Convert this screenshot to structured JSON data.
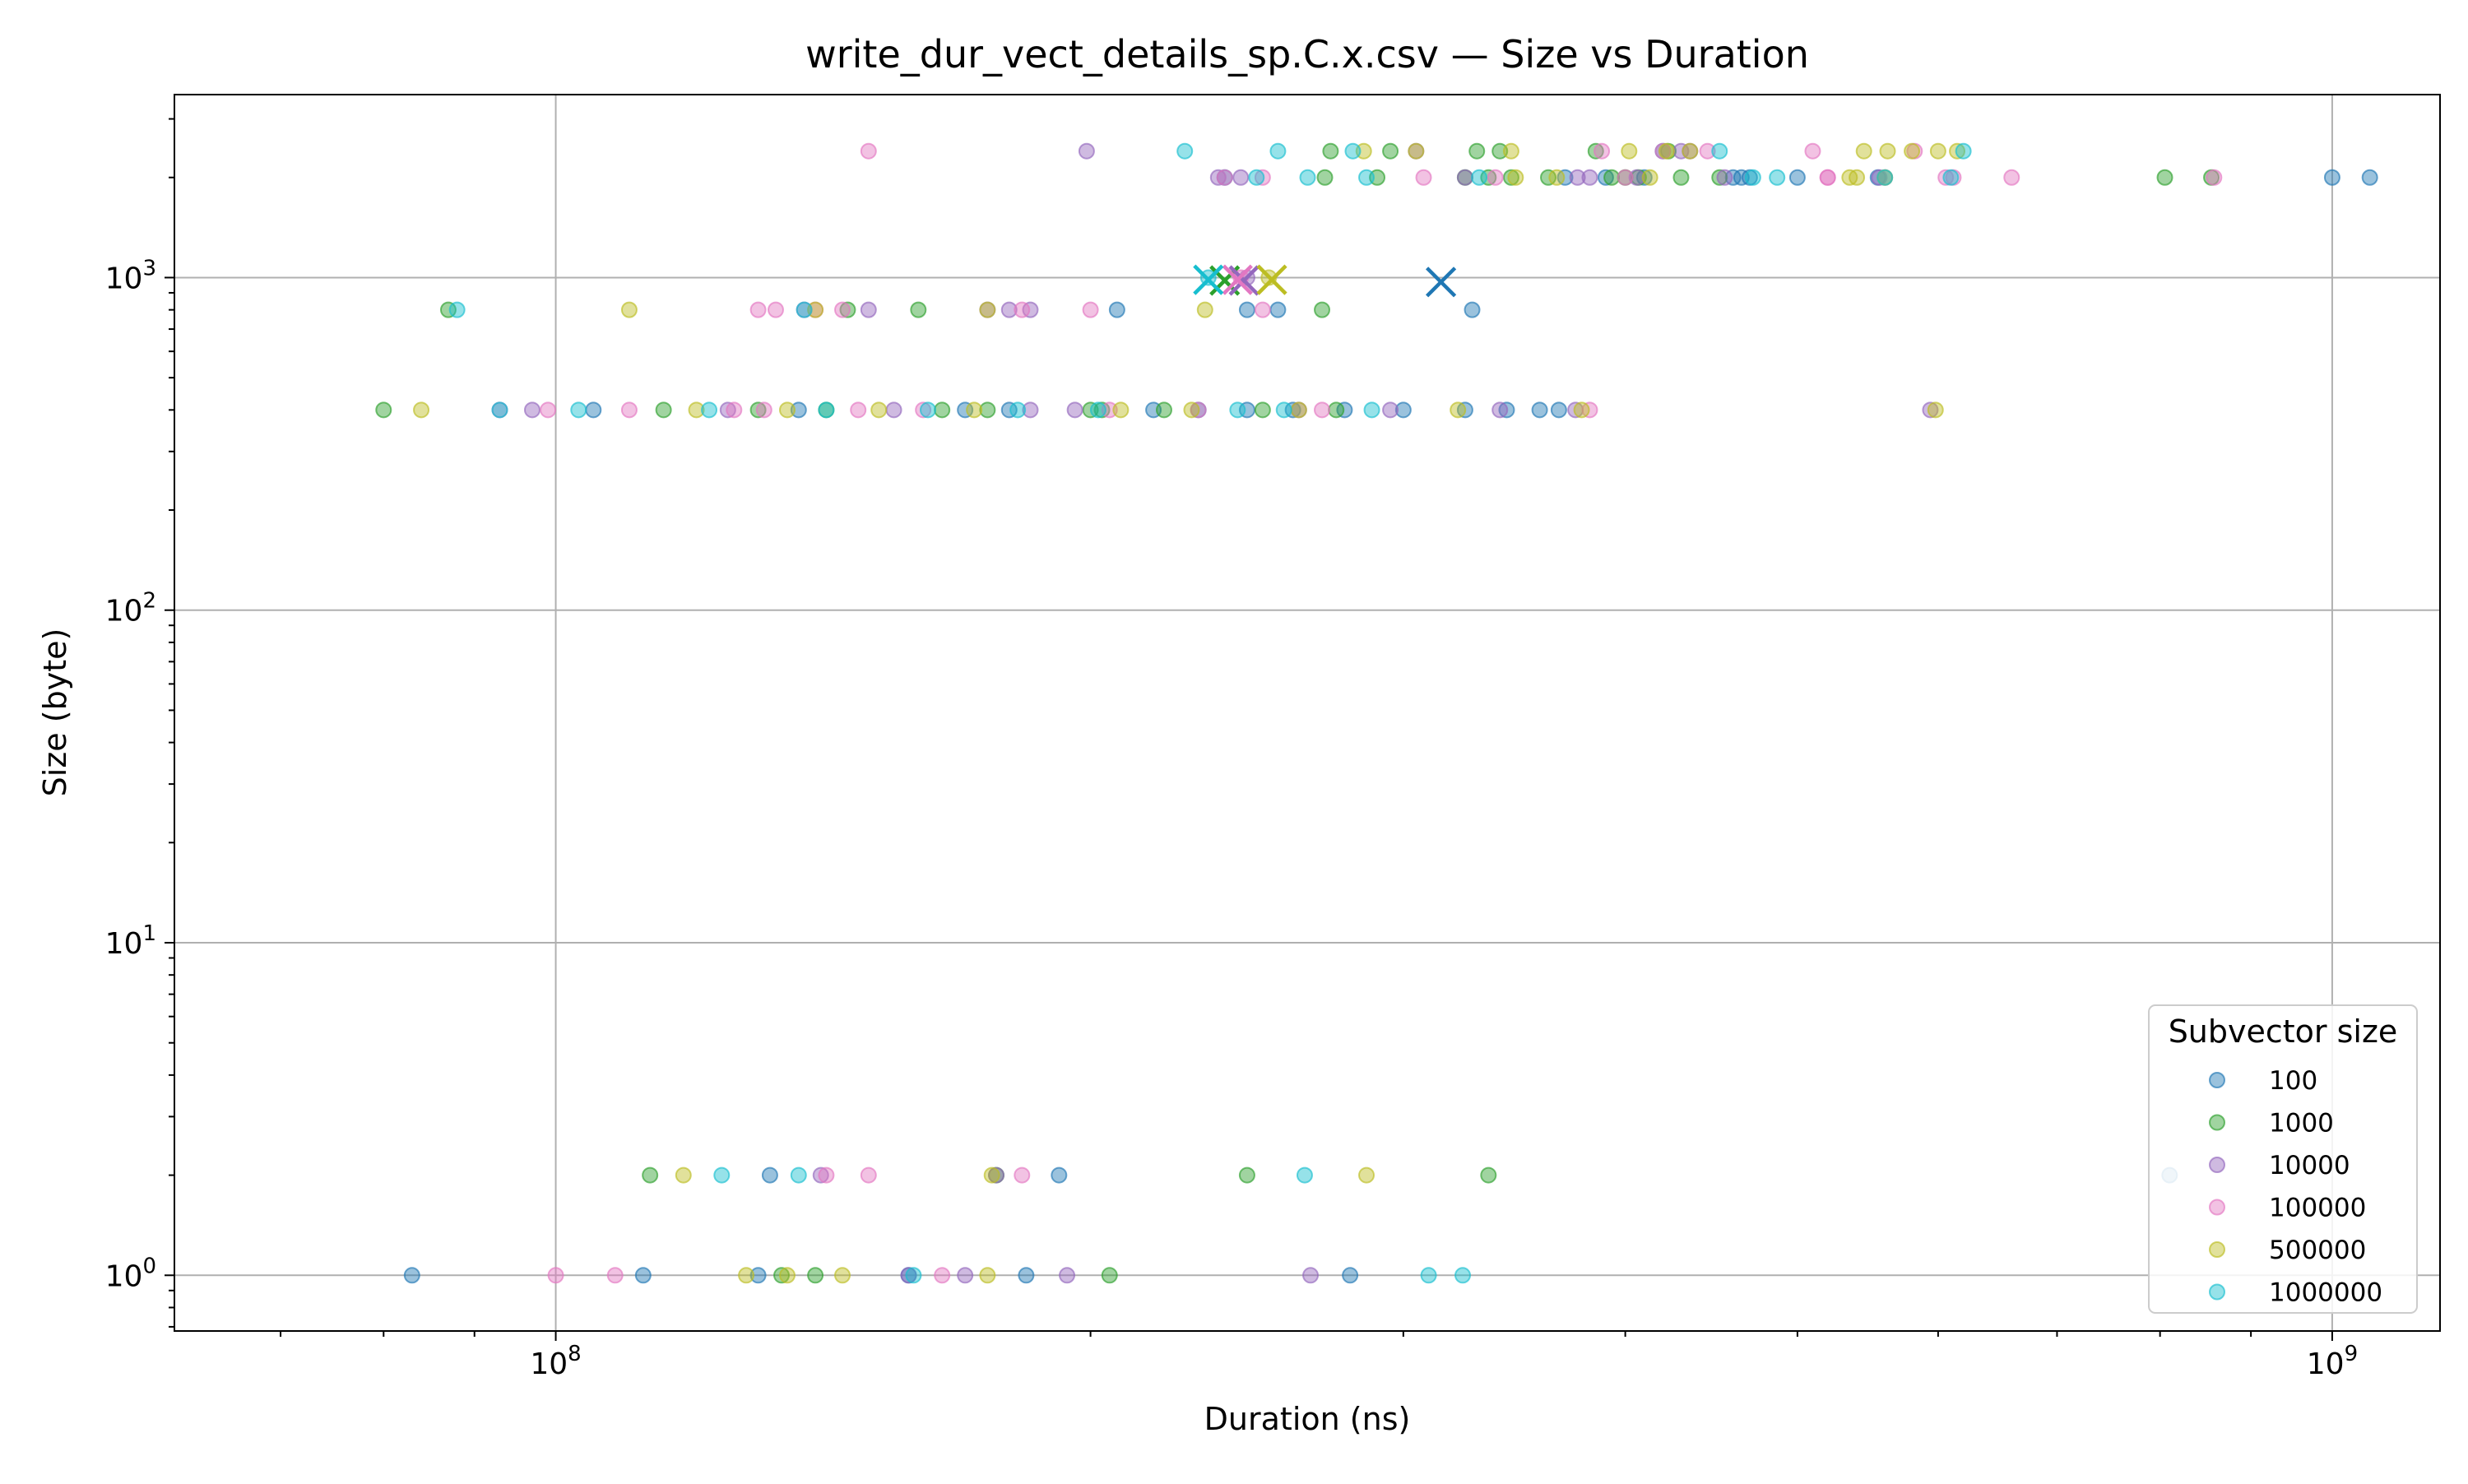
{
  "chart_data": {
    "type": "scatter",
    "title": "write_dur_vect_details_sp.C.x.csv — Size vs Duration",
    "xlabel": "Duration (ns)",
    "ylabel": "Size (byte)",
    "xscale": "log",
    "yscale": "log",
    "xlim": [
      61000000,
      1150000000
    ],
    "ylim": [
      0.68,
      3550
    ],
    "grid": true,
    "x_ticks": [
      {
        "value": 100000000,
        "label": "10^8"
      },
      {
        "value": 1000000000,
        "label": "10^9"
      }
    ],
    "y_ticks": [
      {
        "value": 1,
        "label": "10^0"
      },
      {
        "value": 10,
        "label": "10^1"
      },
      {
        "value": 100,
        "label": "10^2"
      },
      {
        "value": 1000,
        "label": "10^3"
      }
    ],
    "legend": {
      "title": "Subvector size",
      "position": "lower right"
    },
    "series": [
      {
        "name": "100",
        "color": "#1f77b4",
        "points": [
          [
            370000000.0,
            2000
          ],
          [
            410000000.0,
            2000
          ],
          [
            460000000.0,
            2000
          ],
          [
            465000000.0,
            2000
          ],
          [
            555000000.0,
            2000
          ],
          [
            1000000000.0,
            2000
          ],
          [
            1050000000.0,
            2000
          ],
          [
            420000000.0,
            2400
          ],
          [
            390000000.0,
            2000
          ],
          [
            470000000.0,
            2000
          ],
          [
            500000000.0,
            2000
          ],
          [
            238000000.0,
            2000
          ],
          [
            328000000.0,
            800
          ],
          [
            245000000.0,
            800
          ],
          [
            255000000.0,
            800
          ],
          [
            207000000.0,
            800
          ],
          [
            325000000.0,
            400
          ],
          [
            343000000.0,
            400
          ],
          [
            358000000.0,
            400
          ],
          [
            367000000.0,
            400
          ],
          [
            245000000.0,
            400
          ],
          [
            300000000.0,
            400
          ],
          [
            278000000.0,
            400
          ],
          [
            105000000.0,
            400
          ],
          [
            137000000.0,
            400
          ],
          [
            170000000.0,
            400
          ],
          [
            180000000.0,
            400
          ],
          [
            230000000.0,
            400
          ],
          [
            217000000.0,
            400
          ],
          [
            260000000.0,
            400
          ],
          [
            83000000.0,
            1
          ],
          [
            112000000.0,
            1
          ],
          [
            130000000.0,
            1
          ],
          [
            158000000.0,
            1
          ],
          [
            184000000.0,
            1
          ],
          [
            280000000.0,
            1
          ],
          [
            192000000.0,
            2
          ],
          [
            132000000.0,
            2
          ],
          [
            810000000.0,
            2
          ]
        ]
      },
      {
        "name": "1000",
        "color": "#2ca02c",
        "points": [
          [
            330000000.0,
            2400
          ],
          [
            340000000.0,
            2400
          ],
          [
            423000000.0,
            2400
          ],
          [
            325000000.0,
            2000
          ],
          [
            335000000.0,
            2000
          ],
          [
            393000000.0,
            2000
          ],
          [
            400000000.0,
            2000
          ],
          [
            407000000.0,
            2000
          ],
          [
            452000000.0,
            2000
          ],
          [
            290000000.0,
            2000
          ],
          [
            271000000.0,
            2000
          ],
          [
            805000000.0,
            2000
          ],
          [
            855000000.0,
            2000
          ],
          [
            273000000.0,
            2400
          ],
          [
            295000000.0,
            2400
          ],
          [
            345000000.0,
            2000
          ],
          [
            362000000.0,
            2000
          ],
          [
            430000000.0,
            2000
          ],
          [
            385000000.0,
            2400
          ],
          [
            87000000.0,
            800
          ],
          [
            146000000.0,
            800
          ],
          [
            160000000.0,
            800
          ],
          [
            270000000.0,
            800
          ],
          [
            80000000.0,
            400
          ],
          [
            115000000.0,
            400
          ],
          [
            130000000.0,
            400
          ],
          [
            142000000.0,
            400
          ],
          [
            165000000.0,
            400
          ],
          [
            200000000.0,
            400
          ],
          [
            250000000.0,
            400
          ],
          [
            275000000.0,
            400
          ],
          [
            220000000.0,
            400
          ],
          [
            203000000.0,
            400
          ],
          [
            175000000.0,
            400
          ],
          [
            140000000.0,
            1
          ],
          [
            134000000.0,
            1
          ],
          [
            205000000.0,
            1
          ],
          [
            113000000.0,
            2
          ],
          [
            177000000.0,
            2
          ],
          [
            245000000.0,
            2
          ],
          [
            335000000.0,
            2
          ]
        ]
      },
      {
        "name": "10000",
        "color": "#9467bd",
        "points": [
          [
            199000000.0,
            2400
          ],
          [
            305000000.0,
            2400
          ],
          [
            430000000.0,
            2400
          ],
          [
            435000000.0,
            2400
          ],
          [
            236000000.0,
            2000
          ],
          [
            243000000.0,
            2000
          ],
          [
            325000000.0,
            2000
          ],
          [
            376000000.0,
            2000
          ],
          [
            382000000.0,
            2000
          ],
          [
            406000000.0,
            2000
          ],
          [
            455000000.0,
            2000
          ],
          [
            556000000.0,
            2000
          ],
          [
            138000000.0,
            800
          ],
          [
            175000000.0,
            800
          ],
          [
            180000000.0,
            800
          ],
          [
            185000000.0,
            800
          ],
          [
            150000000.0,
            800
          ],
          [
            93000000.0,
            400
          ],
          [
            97000000.0,
            400
          ],
          [
            125000000.0,
            400
          ],
          [
            155000000.0,
            400
          ],
          [
            185000000.0,
            400
          ],
          [
            196000000.0,
            400
          ],
          [
            262000000.0,
            400
          ],
          [
            295000000.0,
            400
          ],
          [
            340000000.0,
            400
          ],
          [
            375000000.0,
            400
          ],
          [
            594000000.0,
            400
          ],
          [
            141000000.0,
            2
          ],
          [
            177000000.0,
            2
          ],
          [
            158000000.0,
            1
          ],
          [
            170000000.0,
            1
          ],
          [
            194000000.0,
            1
          ],
          [
            266000000.0,
            1
          ],
          [
            245000000.0,
            1000
          ]
        ]
      },
      {
        "name": "100000",
        "color": "#e377c2",
        "points": [
          [
            150000000.0,
            2400
          ],
          [
            388000000.0,
            2400
          ],
          [
            420000000.0,
            2400
          ],
          [
            445000000.0,
            2400
          ],
          [
            510000000.0,
            2400
          ],
          [
            582000000.0,
            2400
          ],
          [
            606000000.0,
            2000
          ],
          [
            612000000.0,
            2000
          ],
          [
            520000000.0,
            2000
          ],
          [
            400000000.0,
            2000
          ],
          [
            338000000.0,
            2000
          ],
          [
            308000000.0,
            2000
          ],
          [
            250000000.0,
            2000
          ],
          [
            238000000.0,
            2000
          ],
          [
            520000000.0,
            2000
          ],
          [
            560000000.0,
            2000
          ],
          [
            660000000.0,
            2000
          ],
          [
            858000000.0,
            2000
          ],
          [
            183000000.0,
            800
          ],
          [
            200000000.0,
            800
          ],
          [
            250000000.0,
            800
          ],
          [
            140000000.0,
            800
          ],
          [
            145000000.0,
            800
          ],
          [
            133000000.0,
            800
          ],
          [
            130000000.0,
            800
          ],
          [
            99000000.0,
            400
          ],
          [
            110000000.0,
            400
          ],
          [
            126000000.0,
            400
          ],
          [
            131000000.0,
            400
          ],
          [
            148000000.0,
            400
          ],
          [
            161000000.0,
            400
          ],
          [
            205000000.0,
            400
          ],
          [
            230000000.0,
            400
          ],
          [
            270000000.0,
            400
          ],
          [
            382000000.0,
            400
          ],
          [
            100000000.0,
            1
          ],
          [
            108000000.0,
            1
          ],
          [
            165000000.0,
            1
          ],
          [
            142000000.0,
            2
          ],
          [
            150000000.0,
            2
          ],
          [
            183000000.0,
            2
          ],
          [
            243000000.0,
            1000
          ]
        ]
      },
      {
        "name": "500000",
        "color": "#bcbd22",
        "points": [
          [
            285000000.0,
            2400
          ],
          [
            305000000.0,
            2400
          ],
          [
            345000000.0,
            2400
          ],
          [
            402000000.0,
            2400
          ],
          [
            422000000.0,
            2400
          ],
          [
            435000000.0,
            2400
          ],
          [
            545000000.0,
            2400
          ],
          [
            562000000.0,
            2400
          ],
          [
            580000000.0,
            2400
          ],
          [
            600000000.0,
            2400
          ],
          [
            615000000.0,
            2400
          ],
          [
            347000000.0,
            2000
          ],
          [
            366000000.0,
            2000
          ],
          [
            413000000.0,
            2000
          ],
          [
            535000000.0,
            2000
          ],
          [
            560000000.0,
            2000
          ],
          [
            540000000.0,
            2000
          ],
          [
            110000000.0,
            800
          ],
          [
            140000000.0,
            800
          ],
          [
            175000000.0,
            800
          ],
          [
            232000000.0,
            800
          ],
          [
            84000000.0,
            400
          ],
          [
            120000000.0,
            400
          ],
          [
            135000000.0,
            400
          ],
          [
            152000000.0,
            400
          ],
          [
            172000000.0,
            400
          ],
          [
            208000000.0,
            400
          ],
          [
            228000000.0,
            400
          ],
          [
            262000000.0,
            400
          ],
          [
            322000000.0,
            400
          ],
          [
            378000000.0,
            400
          ],
          [
            598000000.0,
            400
          ],
          [
            135000000.0,
            1
          ],
          [
            145000000.0,
            1
          ],
          [
            175000000.0,
            1
          ],
          [
            128000000.0,
            1
          ],
          [
            118000000.0,
            2
          ],
          [
            176000000.0,
            2
          ],
          [
            286000000.0,
            2
          ],
          [
            252000000.0,
            1000
          ]
        ]
      },
      {
        "name": "1000000",
        "color": "#17becf",
        "points": [
          [
            226000000.0,
            2400
          ],
          [
            255000000.0,
            2400
          ],
          [
            281000000.0,
            2400
          ],
          [
            452000000.0,
            2400
          ],
          [
            620000000.0,
            2400
          ],
          [
            248000000.0,
            2000
          ],
          [
            265000000.0,
            2000
          ],
          [
            286000000.0,
            2000
          ],
          [
            331000000.0,
            2000
          ],
          [
            472000000.0,
            2000
          ],
          [
            487000000.0,
            2000
          ],
          [
            560000000.0,
            2000
          ],
          [
            610000000.0,
            2000
          ],
          [
            88000000.0,
            800
          ],
          [
            138000000.0,
            800
          ],
          [
            93000000.0,
            400
          ],
          [
            103000000.0,
            400
          ],
          [
            142000000.0,
            400
          ],
          [
            162000000.0,
            400
          ],
          [
            182000000.0,
            400
          ],
          [
            202000000.0,
            400
          ],
          [
            242000000.0,
            400
          ],
          [
            257000000.0,
            400
          ],
          [
            288000000.0,
            400
          ],
          [
            122000000.0,
            400
          ],
          [
            264000000.0,
            2
          ],
          [
            124000000.0,
            2
          ],
          [
            137000000.0,
            2
          ],
          [
            159000000.0,
            1
          ],
          [
            310000000.0,
            1
          ],
          [
            324000000.0,
            1
          ],
          [
            233000000.0,
            1000
          ]
        ]
      }
    ],
    "means": [
      {
        "series": "100",
        "x": 315000000.0,
        "y": 970
      },
      {
        "series": "1000",
        "x": 238000000.0,
        "y": 980
      },
      {
        "series": "10000",
        "x": 244000000.0,
        "y": 980
      },
      {
        "series": "100000",
        "x": 242000000.0,
        "y": 985
      },
      {
        "series": "500000",
        "x": 253000000.0,
        "y": 985
      },
      {
        "series": "1000000",
        "x": 233000000.0,
        "y": 985
      }
    ]
  }
}
